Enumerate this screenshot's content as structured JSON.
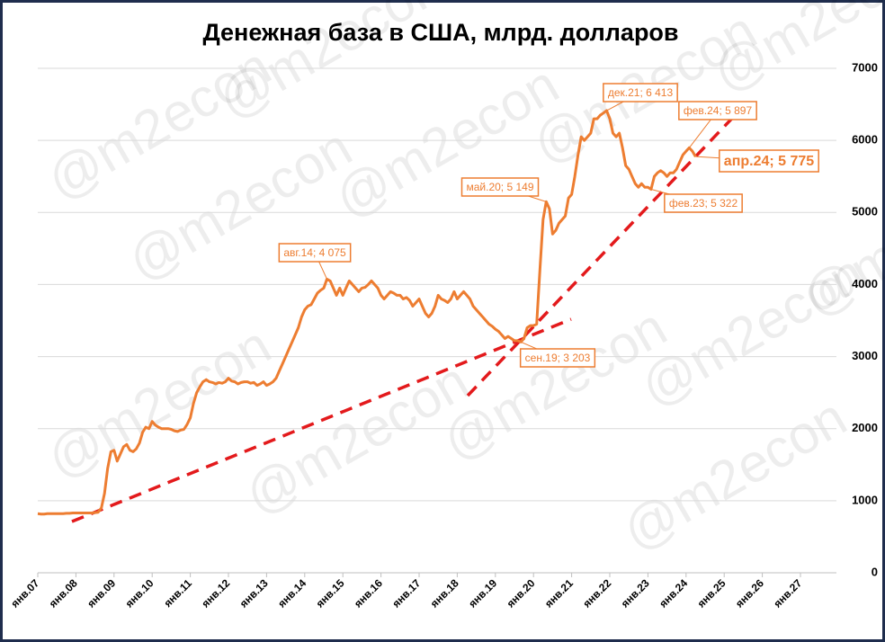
{
  "chart_data": {
    "type": "line",
    "title": "Денежная база в США, млрд. долларов",
    "watermark": "@m2econ",
    "categories": [
      "янв.07",
      null,
      null,
      null,
      null,
      null,
      null,
      null,
      null,
      null,
      null,
      null,
      "янв.08",
      null,
      null,
      null,
      null,
      null,
      null,
      null,
      null,
      null,
      null,
      null,
      "янв.09",
      null,
      null,
      null,
      null,
      null,
      null,
      null,
      null,
      null,
      null,
      null,
      "янв.10",
      null,
      null,
      null,
      null,
      null,
      null,
      null,
      null,
      null,
      null,
      null,
      "янв.11",
      null,
      null,
      null,
      null,
      null,
      null,
      null,
      null,
      null,
      null,
      null,
      "янв.12",
      null,
      null,
      null,
      null,
      null,
      null,
      null,
      null,
      null,
      null,
      null,
      "янв.13",
      null,
      null,
      null,
      null,
      null,
      null,
      null,
      null,
      null,
      null,
      null,
      "янв.14",
      null,
      null,
      null,
      null,
      null,
      null,
      null,
      null,
      null,
      null,
      null,
      "янв.15",
      null,
      null,
      null,
      null,
      null,
      null,
      null,
      null,
      null,
      null,
      null,
      "янв.16",
      null,
      null,
      null,
      null,
      null,
      null,
      null,
      null,
      null,
      null,
      null,
      "янв.17",
      null,
      null,
      null,
      null,
      null,
      null,
      null,
      null,
      null,
      null,
      null,
      "янв.18",
      null,
      null,
      null,
      null,
      null,
      null,
      null,
      null,
      null,
      null,
      null,
      "янв.19",
      null,
      null,
      null,
      null,
      null,
      null,
      null,
      null,
      null,
      null,
      null,
      "янв.20",
      null,
      null,
      null,
      null,
      null,
      null,
      null,
      null,
      null,
      null,
      null,
      "янв.21",
      null,
      null,
      null,
      null,
      null,
      null,
      null,
      null,
      null,
      null,
      null,
      "янв.22",
      null,
      null,
      null,
      null,
      null,
      null,
      null,
      null,
      null,
      null,
      null,
      "янв.23",
      null,
      null,
      null,
      null,
      null,
      null,
      null,
      null,
      null,
      null,
      null,
      "янв.24",
      null,
      null,
      null,
      null,
      null,
      null,
      null,
      null,
      null,
      null,
      null,
      "янв.25",
      null,
      null,
      null,
      null,
      null,
      null,
      null,
      null,
      null,
      null,
      null,
      "янв.26",
      null,
      null,
      null,
      null,
      null,
      null,
      null,
      null,
      null,
      null,
      null,
      "янв.27"
    ],
    "series": [
      {
        "color": "#ED7D31",
        "values": [
          820,
          815,
          815,
          820,
          820,
          820,
          820,
          820,
          820,
          825,
          825,
          830,
          830,
          830,
          830,
          830,
          830,
          830,
          835,
          840,
          900,
          1100,
          1450,
          1680,
          1700,
          1550,
          1650,
          1750,
          1780,
          1700,
          1680,
          1720,
          1800,
          1950,
          2020,
          2000,
          2100,
          2050,
          2020,
          2000,
          2000,
          2000,
          1990,
          1970,
          1960,
          1980,
          1990,
          2060,
          2150,
          2350,
          2500,
          2580,
          2650,
          2680,
          2650,
          2640,
          2620,
          2640,
          2630,
          2650,
          2700,
          2660,
          2650,
          2620,
          2640,
          2650,
          2650,
          2630,
          2640,
          2600,
          2620,
          2650,
          2600,
          2620,
          2650,
          2700,
          2800,
          2900,
          3000,
          3100,
          3200,
          3300,
          3400,
          3550,
          3650,
          3700,
          3720,
          3800,
          3880,
          3920,
          3950,
          4075,
          4050,
          3950,
          3850,
          3950,
          3850,
          3950,
          4050,
          4000,
          3950,
          3900,
          3950,
          3960,
          4000,
          4050,
          4000,
          3950,
          3850,
          3800,
          3850,
          3900,
          3880,
          3850,
          3850,
          3800,
          3820,
          3780,
          3700,
          3750,
          3800,
          3700,
          3600,
          3550,
          3600,
          3700,
          3850,
          3800,
          3780,
          3750,
          3800,
          3900,
          3800,
          3850,
          3900,
          3850,
          3800,
          3700,
          3650,
          3600,
          3550,
          3500,
          3450,
          3420,
          3380,
          3350,
          3300,
          3250,
          3280,
          3250,
          3220,
          3220,
          3203,
          3250,
          3400,
          3430,
          3430,
          3450,
          4200,
          4900,
          5149,
          5050,
          4700,
          4750,
          4850,
          4900,
          4950,
          5200,
          5250,
          5500,
          5800,
          6050,
          6000,
          6050,
          6100,
          6300,
          6300,
          6350,
          6380,
          6413,
          6300,
          6100,
          6050,
          6100,
          5900,
          5650,
          5600,
          5500,
          5400,
          5350,
          5400,
          5350,
          5350,
          5322,
          5500,
          5550,
          5580,
          5550,
          5500,
          5550,
          5550,
          5600,
          5700,
          5800,
          5850,
          5897,
          5850,
          5775,
          null,
          null,
          null,
          null,
          null,
          null,
          null,
          null,
          null,
          null,
          null,
          null,
          null,
          null,
          null,
          null,
          null,
          null,
          null,
          null,
          null,
          null,
          null,
          null,
          null,
          null,
          null,
          null,
          null,
          null,
          null,
          null,
          null
        ]
      }
    ],
    "annotations": [
      "авг.14; 4 075",
      "май.20; 5 149",
      "дек.21; 6 413",
      "фев.24; 5 897",
      "апр.24; 5 775",
      "фев.23; 5 322",
      "сен.19; 3 203"
    ],
    "ylim": [
      0,
      7000
    ],
    "yticks": [
      0,
      1000,
      2000,
      3000,
      4000,
      5000,
      6000,
      7000
    ],
    "grid": true
  }
}
